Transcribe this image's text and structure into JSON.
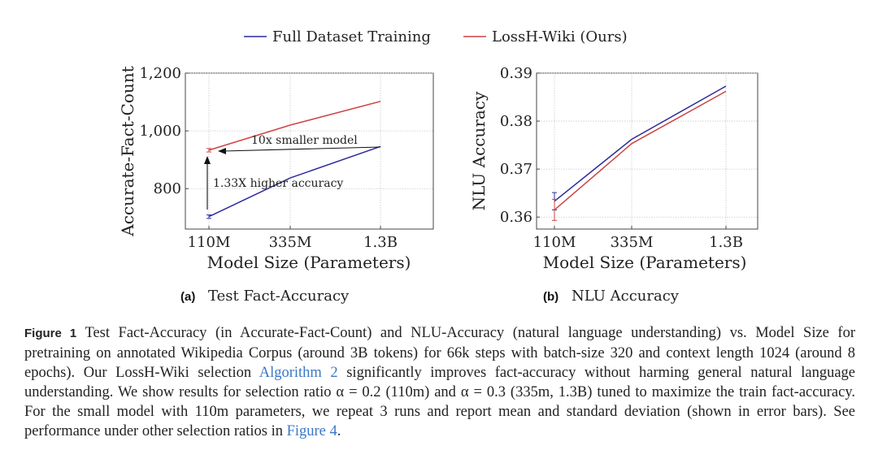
{
  "legend": [
    {
      "label": "Full Dataset Training",
      "color": "#2b2b9b"
    },
    {
      "label": "LossH-Wiki (Ours)",
      "color": "#cc4444"
    }
  ],
  "chart_data": [
    {
      "type": "line",
      "panel": "(a)",
      "subtitle": "Test Fact-Accuracy",
      "xlabel": "Model Size (Parameters)",
      "ylabel": "Accurate-Fact-Count",
      "categories": [
        "110M",
        "335M",
        "1.3B"
      ],
      "ylim": [
        660,
        1200
      ],
      "yticks": [
        800,
        1000,
        1200
      ],
      "ytick_labels": [
        "800",
        "1,000",
        "1,200"
      ],
      "grid": true,
      "series": [
        {
          "name": "Full Dataset Training",
          "values": [
            703,
            837,
            946
          ],
          "error_first": 6
        },
        {
          "name": "LossH-Wiki (Ours)",
          "values": [
            933,
            1020,
            1102
          ],
          "error_first": 6
        }
      ],
      "annotations": [
        "10x smaller model",
        "1.33X higher accuracy"
      ]
    },
    {
      "type": "line",
      "panel": "(b)",
      "subtitle": "NLU Accuracy",
      "xlabel": "Model Size (Parameters)",
      "ylabel": "NLU Accuracy",
      "categories": [
        "110M",
        "335M",
        "1.3B"
      ],
      "ylim": [
        0.3575,
        0.39
      ],
      "yticks": [
        0.36,
        0.37,
        0.38,
        0.39
      ],
      "ytick_labels": [
        "0.36",
        "0.37",
        "0.38",
        "0.39"
      ],
      "grid": true,
      "series": [
        {
          "name": "Full Dataset Training",
          "values": [
            0.3633,
            0.3762,
            0.3873
          ],
          "error_first": 0.0018
        },
        {
          "name": "LossH-Wiki (Ours)",
          "values": [
            0.3615,
            0.3753,
            0.3862
          ],
          "error_first": 0.0022
        }
      ]
    }
  ],
  "caption": {
    "label": "Figure 1",
    "part1": " Test Fact-Accuracy (in Accurate-Fact-Count) and NLU-Accuracy (natural language understanding) vs. Model Size for pretraining on annotated Wikipedia Corpus (around 3B tokens) for 66k steps with batch-size 320 and context length 1024 (around 8 epochs). Our LossH-Wiki selection ",
    "link1": "Algorithm 2",
    "part2": " significantly improves fact-accuracy without harming general natural language understanding. We show results for selection ratio α = 0.2 (110m) and α = 0.3 (335m, 1.3B) tuned to maximize the train fact-accuracy. For the small model with 110m parameters, we repeat 3 runs and report mean and standard deviation (shown in error bars). See performance under other selection ratios in ",
    "link2": "Figure 4",
    "part3": "."
  }
}
